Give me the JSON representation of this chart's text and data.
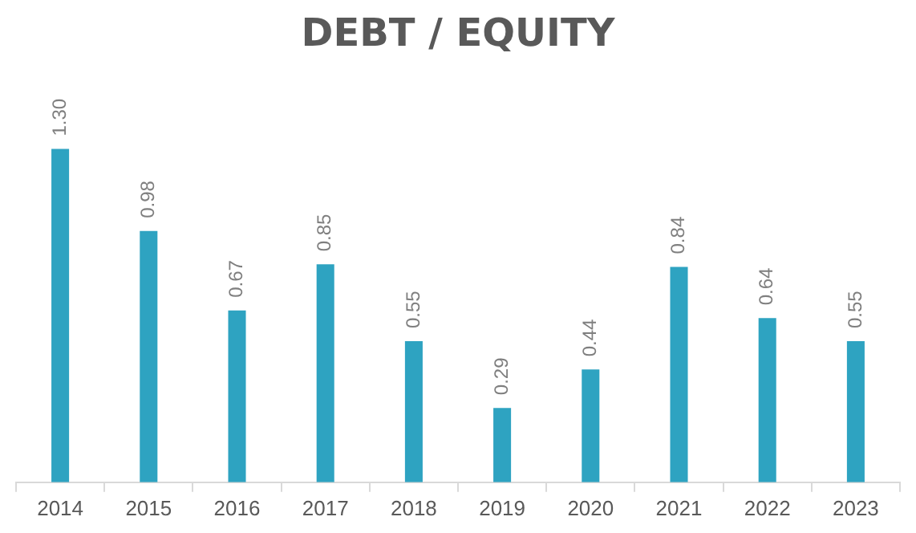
{
  "chart_data": {
    "type": "bar",
    "title": "DEBT / EQUITY",
    "categories": [
      "2014",
      "2015",
      "2016",
      "2017",
      "2018",
      "2019",
      "2020",
      "2021",
      "2022",
      "2023"
    ],
    "values": [
      1.3,
      0.98,
      0.67,
      0.85,
      0.55,
      0.29,
      0.44,
      0.84,
      0.64,
      0.55
    ],
    "value_labels": [
      "1.30",
      "0.98",
      "0.67",
      "0.85",
      "0.55",
      "0.29",
      "0.44",
      "0.84",
      "0.64",
      "0.55"
    ],
    "color": "#2ea3c1",
    "tick_labels": "x",
    "grid": false,
    "legend": false
  }
}
